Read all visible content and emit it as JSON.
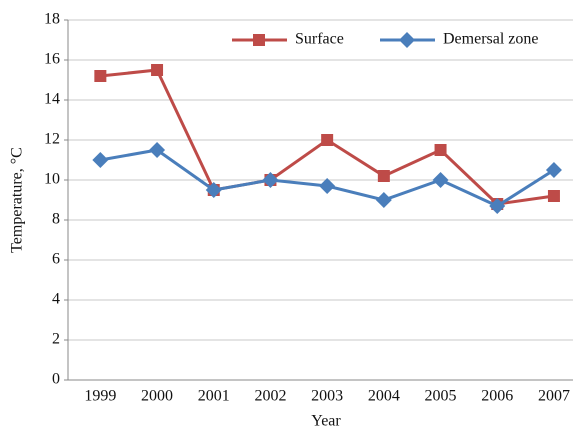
{
  "chart_data": {
    "type": "line",
    "categories": [
      "1999",
      "2000",
      "2001",
      "2002",
      "2003",
      "2004",
      "2005",
      "2006",
      "2007"
    ],
    "series": [
      {
        "name": "Surface",
        "color": "#be4b48",
        "marker": "square",
        "values": [
          15.2,
          15.5,
          9.5,
          10.0,
          12.0,
          10.2,
          11.5,
          8.8,
          9.2
        ]
      },
      {
        "name": "Demersal zone",
        "color": "#4a7ebb",
        "marker": "diamond",
        "values": [
          11.0,
          11.5,
          9.5,
          10.0,
          9.7,
          9.0,
          10.0,
          8.7,
          10.5
        ]
      }
    ],
    "x_label": "Year",
    "y_label": "Temperature, °C",
    "ylim": [
      0,
      18
    ],
    "yticks": [
      0,
      2,
      4,
      6,
      8,
      10,
      12,
      14,
      16,
      18
    ],
    "grid": true,
    "legend": "top"
  }
}
